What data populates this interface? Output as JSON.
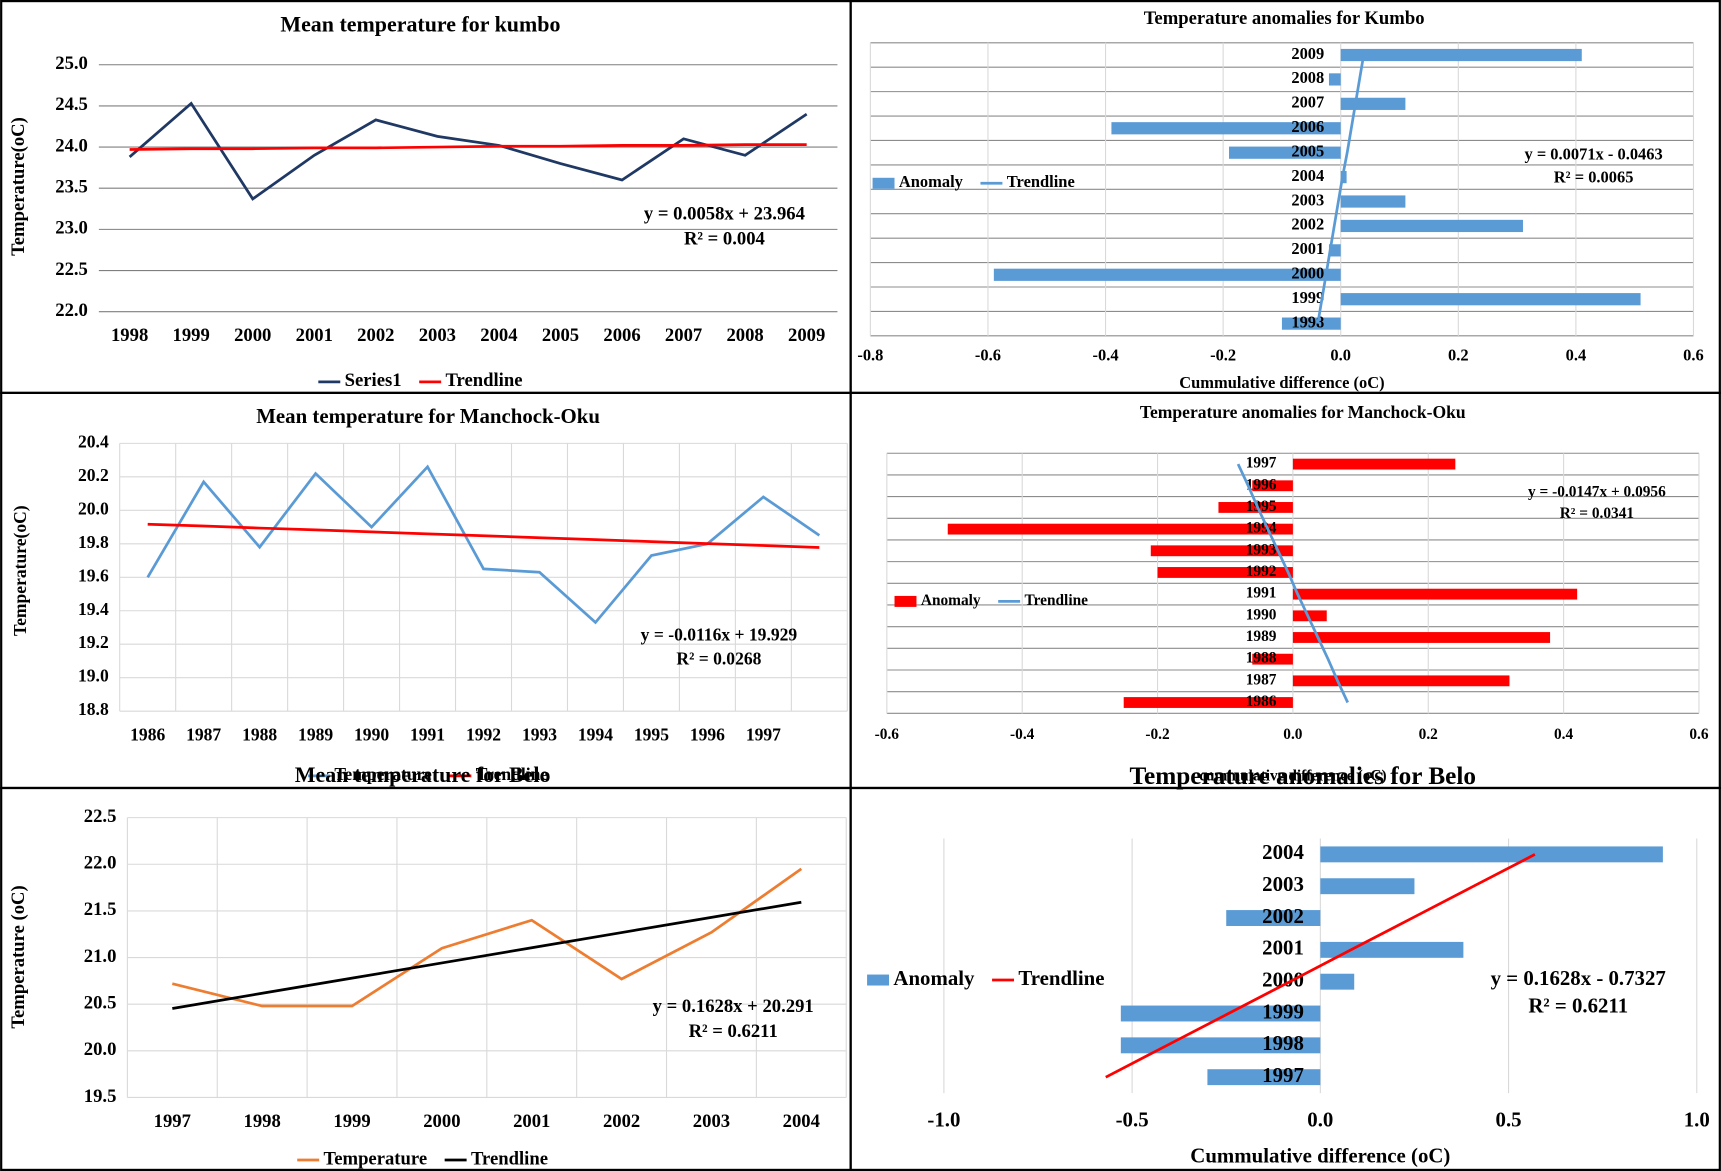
{
  "chart_data": [
    {
      "type": "line",
      "title": "Mean temperature for kumbo",
      "y_label": "Temperature(oC)",
      "categories": [
        "1998",
        "1999",
        "2000",
        "2001",
        "2002",
        "2003",
        "2004",
        "2005",
        "2006",
        "2007",
        "2008",
        "2009"
      ],
      "series": [
        {
          "name": "Series1",
          "color": "#1f3864",
          "values": [
            23.88,
            24.53,
            23.37,
            23.9,
            24.33,
            24.13,
            24.02,
            23.8,
            23.6,
            24.1,
            23.9,
            24.4
          ]
        },
        {
          "name": "Trendline",
          "color": "#ff0000",
          "values": [
            23.97,
            23.98,
            23.98,
            23.99,
            23.99,
            24.0,
            24.01,
            24.01,
            24.02,
            24.02,
            24.03,
            24.03
          ]
        }
      ],
      "ylim": [
        22,
        25
      ],
      "yticks": [
        {
          "value": 22,
          "label": "22.0"
        },
        22.5,
        {
          "value": 23,
          "label": "23.0"
        },
        23.5,
        {
          "value": 24,
          "label": "24.0"
        },
        24.5,
        {
          "value": 25,
          "label": "25.0"
        }
      ],
      "grid": "y",
      "legend": "bottom",
      "annotations": [
        "y = 0.0058x + 23.964",
        "R² = 0.004"
      ]
    },
    {
      "type": "hbar",
      "title": "Temperature anomalies for Kumbo",
      "x_label": "Cummulative difference (oC)",
      "categories": [
        "1998",
        "1999",
        "2000",
        "2001",
        "2002",
        "2003",
        "2004",
        "2005",
        "2006",
        "2007",
        "2008",
        "2009"
      ],
      "series": [
        {
          "name": "Anomaly",
          "style": "bar",
          "color": "#5b9bd5",
          "values": [
            -0.1,
            0.51,
            -0.59,
            -0.02,
            0.31,
            0.11,
            0.01,
            -0.19,
            -0.39,
            0.11,
            -0.02,
            0.41
          ]
        },
        {
          "name": "Trendline",
          "style": "line",
          "color": "#5b9bd5",
          "values": [
            -0.039,
            -0.032,
            -0.025,
            -0.018,
            -0.011,
            -0.004,
            0.003,
            0.011,
            0.018,
            0.025,
            0.032,
            0.039
          ]
        }
      ],
      "xlim": [
        -0.8,
        0.6
      ],
      "xticks": [
        -0.8,
        -0.6,
        -0.4,
        -0.2,
        {
          "value": 0,
          "label": "0.0"
        },
        0.2,
        0.4,
        0.6
      ],
      "grid": "both",
      "legend": "left",
      "annotations": [
        "y = 0.0071x - 0.0463",
        "R² = 0.0065"
      ]
    },
    {
      "type": "line",
      "title": "Mean temperature for Manchock-Oku",
      "y_label": "Temperature(oC)",
      "categories": [
        "1986",
        "1987",
        "1988",
        "1989",
        "1990",
        "1991",
        "1992",
        "1993",
        "1994",
        "1995",
        "1996",
        "1997",
        null
      ],
      "series": [
        {
          "name": "Temperature",
          "color": "#5b9bd5",
          "values": [
            19.6,
            20.17,
            19.78,
            20.22,
            19.9,
            20.26,
            19.65,
            19.63,
            19.33,
            19.73,
            19.8,
            20.08,
            19.85
          ]
        },
        {
          "name": "Trendline",
          "color": "#ff0000",
          "values": [
            19.917,
            19.906,
            19.894,
            19.883,
            19.871,
            19.859,
            19.848,
            19.836,
            19.825,
            19.813,
            19.801,
            19.79,
            19.778
          ]
        }
      ],
      "ylim": [
        18.8,
        20.4
      ],
      "yticks": [
        18.8,
        {
          "value": 19,
          "label": "19.0"
        },
        19.2,
        19.4,
        19.6,
        19.8,
        {
          "value": 20,
          "label": "20.0"
        },
        20.2,
        20.4
      ],
      "grid": "both",
      "legend": "bottom",
      "annotations": [
        "y = -0.0116x + 19.929",
        "R² = 0.0268"
      ]
    },
    {
      "type": "hbar",
      "title": "Temperature anomalies for Manchock-Oku",
      "x_label": "cummulative difference (oC)",
      "categories": [
        "1986",
        "1987",
        "1988",
        "1989",
        "1990",
        "1991",
        "1992",
        "1993",
        "1994",
        "1995",
        "1996",
        "1997"
      ],
      "series": [
        {
          "name": "Anomaly",
          "style": "bar",
          "color": "#ff0000",
          "values": [
            -0.25,
            0.32,
            -0.06,
            0.38,
            0.05,
            0.42,
            -0.2,
            -0.21,
            -0.51,
            -0.11,
            -0.06,
            0.24
          ]
        },
        {
          "name": "Trendline",
          "style": "line",
          "color": "#5b9bd5",
          "values": [
            0.081,
            0.066,
            0.052,
            0.037,
            0.022,
            0.007,
            -0.007,
            -0.022,
            -0.037,
            -0.052,
            -0.066,
            -0.081
          ]
        }
      ],
      "xlim": [
        -0.6,
        0.6
      ],
      "xticks": [
        -0.6,
        -0.4,
        -0.2,
        {
          "value": 0,
          "label": "0.0"
        },
        0.2,
        0.4,
        0.6
      ],
      "grid": "both",
      "legend": "left",
      "annotations": [
        "y = -0.0147x + 0.0956",
        "R² = 0.0341"
      ]
    },
    {
      "type": "line",
      "title": "Mean temperature for Belo",
      "y_label": "Temperature (oC)",
      "categories": [
        "1997",
        "1998",
        "1999",
        "2000",
        "2001",
        "2002",
        "2003",
        "2004"
      ],
      "series": [
        {
          "name": "Temperature",
          "color": "#ed7d31",
          "values": [
            20.72,
            20.48,
            20.48,
            21.1,
            21.4,
            20.77,
            21.27,
            21.95
          ]
        },
        {
          "name": "Trendline",
          "color": "#000000",
          "values": [
            20.454,
            20.617,
            20.779,
            20.942,
            21.105,
            21.268,
            21.431,
            21.593
          ]
        }
      ],
      "ylim": [
        19.5,
        22.5
      ],
      "yticks": [
        19.5,
        {
          "value": 20,
          "label": "20.0"
        },
        20.5,
        {
          "value": 21,
          "label": "21.0"
        },
        21.5,
        {
          "value": 22,
          "label": "22.0"
        },
        22.5
      ],
      "grid": "both",
      "legend": "bottom",
      "annotations": [
        "y = 0.1628x + 20.291",
        "R² = 0.6211"
      ]
    },
    {
      "type": "hbar",
      "title": "Temperature anomalies for Belo",
      "x_label": "Cummulative difference (oC)",
      "categories": [
        "1997",
        "1998",
        "1999",
        "2000",
        "2001",
        "2002",
        "2003",
        "2004"
      ],
      "series": [
        {
          "name": "Anomaly",
          "style": "bar",
          "color": "#5b9bd5",
          "values": [
            -0.3,
            -0.53,
            -0.53,
            0.09,
            0.38,
            -0.25,
            0.25,
            0.91
          ]
        },
        {
          "name": "Trendline",
          "style": "line",
          "color": "#ff0000",
          "values": [
            -0.57,
            -0.407,
            -0.244,
            -0.081,
            0.081,
            0.244,
            0.407,
            0.57
          ]
        }
      ],
      "xlim": [
        -1,
        1
      ],
      "xticks": [
        {
          "value": -1,
          "label": "-1.0"
        },
        -0.5,
        {
          "value": 0,
          "label": "0.0"
        },
        0.5,
        {
          "value": 1,
          "label": "1.0"
        }
      ],
      "grid": "x",
      "legend": "left",
      "annotations": [
        "y = 0.1628x - 0.7327",
        "R² = 0.6211"
      ]
    }
  ]
}
